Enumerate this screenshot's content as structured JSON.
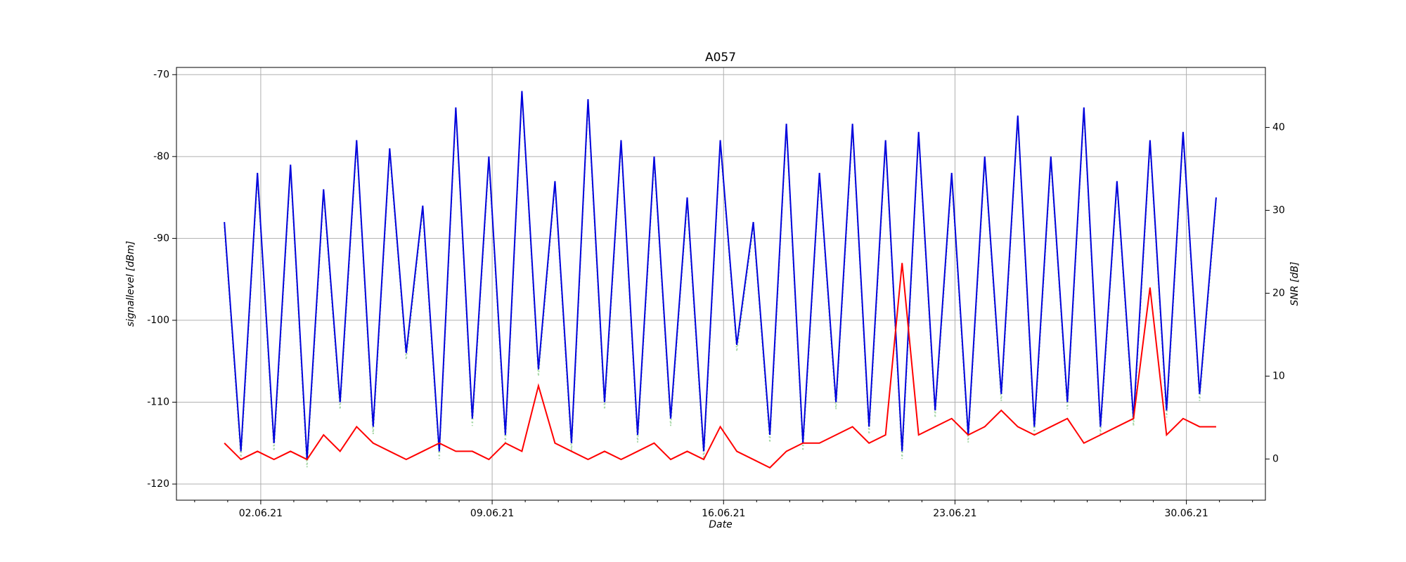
{
  "chart_data": {
    "type": "line",
    "title": "A057",
    "xlabel": "Date",
    "ylabel": "signallevel [dBm]",
    "y2label": "SNR [dB]",
    "grid": true,
    "xlim": [
      -0.55,
      32.39
    ],
    "ylim": [
      -121.97,
      -69.12
    ],
    "y2lim": [
      -4.97,
      47.24
    ],
    "xticks": [
      {
        "value": 2,
        "label": "02.06.21"
      },
      {
        "value": 9,
        "label": "09.06.21"
      },
      {
        "value": 16,
        "label": "16.06.21"
      },
      {
        "value": 23,
        "label": "23.06.21"
      },
      {
        "value": 30,
        "label": "30.06.21"
      }
    ],
    "xminorticks": [
      0,
      1,
      3,
      4,
      5,
      6,
      7,
      8,
      10,
      11,
      12,
      13,
      14,
      15,
      17,
      18,
      19,
      20,
      21,
      22,
      24,
      25,
      26,
      27,
      28,
      29,
      31,
      32
    ],
    "yticks": [
      -120,
      -110,
      -100,
      -90,
      -80,
      -70
    ],
    "y2ticks": [
      0,
      10,
      20,
      30,
      40
    ],
    "x": [
      0.9,
      1.4,
      1.9,
      2.4,
      2.9,
      3.4,
      3.9,
      4.4,
      4.9,
      5.4,
      5.9,
      6.4,
      6.9,
      7.4,
      7.9,
      8.4,
      8.9,
      9.4,
      9.9,
      10.4,
      10.9,
      11.4,
      11.9,
      12.4,
      12.9,
      13.4,
      13.9,
      14.4,
      14.9,
      15.4,
      15.9,
      16.4,
      16.9,
      17.4,
      17.9,
      18.4,
      18.9,
      19.4,
      19.9,
      20.4,
      20.9,
      21.4,
      21.9,
      22.4,
      22.9,
      23.4,
      23.9,
      24.4,
      24.9,
      25.4,
      25.9,
      26.4,
      26.9,
      27.4,
      27.9,
      28.4,
      28.9,
      29.4,
      29.9,
      30.4,
      30.9
    ],
    "series": [
      {
        "color": "#a8d8a8",
        "linestyle": "dotted",
        "axis": "y2",
        "values": [
          28,
          0,
          34,
          1,
          35,
          -1,
          32,
          6,
          38,
          3,
          37,
          12,
          30,
          0,
          42,
          4,
          36,
          2,
          44,
          10,
          33,
          1,
          43,
          6,
          38,
          2,
          36,
          4,
          31,
          0,
          38,
          13,
          28,
          2,
          40,
          1,
          34,
          6,
          40,
          3,
          38,
          0,
          39,
          5,
          34,
          2,
          36,
          7,
          41,
          3,
          36,
          6,
          42,
          3,
          33,
          4,
          38,
          5,
          39,
          7,
          31
        ]
      },
      {
        "color": "#0000dd",
        "linestyle": "solid",
        "values": [
          -88,
          -116,
          -82,
          -115,
          -81,
          -117,
          -84,
          -110,
          -78,
          -113,
          -79,
          -104,
          -86,
          -116,
          -74,
          -112,
          -80,
          -114,
          -72,
          -106,
          -83,
          -115,
          -73,
          -110,
          -78,
          -114,
          -80,
          -112,
          -85,
          -116,
          -78,
          -103,
          -88,
          -114,
          -76,
          -115,
          -82,
          -110,
          -76,
          -113,
          -78,
          -116,
          -77,
          -111,
          -82,
          -114,
          -80,
          -109,
          -75,
          -113,
          -80,
          -110,
          -74,
          -113,
          -83,
          -112,
          -78,
          -111,
          -77,
          -109,
          -85
        ]
      },
      {
        "color": "#ff0000",
        "linestyle": "solid",
        "values": [
          -115,
          -117,
          -116,
          -117,
          -116,
          -117,
          -114,
          -116,
          -113,
          -115,
          -116,
          -117,
          -116,
          -115,
          -116,
          -116,
          -117,
          -115,
          -116,
          -108,
          -115,
          -116,
          -117,
          -116,
          -117,
          -116,
          -115,
          -117,
          -116,
          -117,
          -113,
          -116,
          -117,
          -118,
          -116,
          -115,
          -115,
          -114,
          -113,
          -115,
          -114,
          -93,
          -114,
          -113,
          -112,
          -114,
          -113,
          -111,
          -113,
          -114,
          -113,
          -112,
          -115,
          -114,
          -113,
          -112,
          -96,
          -114,
          -112,
          -113,
          -113
        ]
      }
    ]
  }
}
